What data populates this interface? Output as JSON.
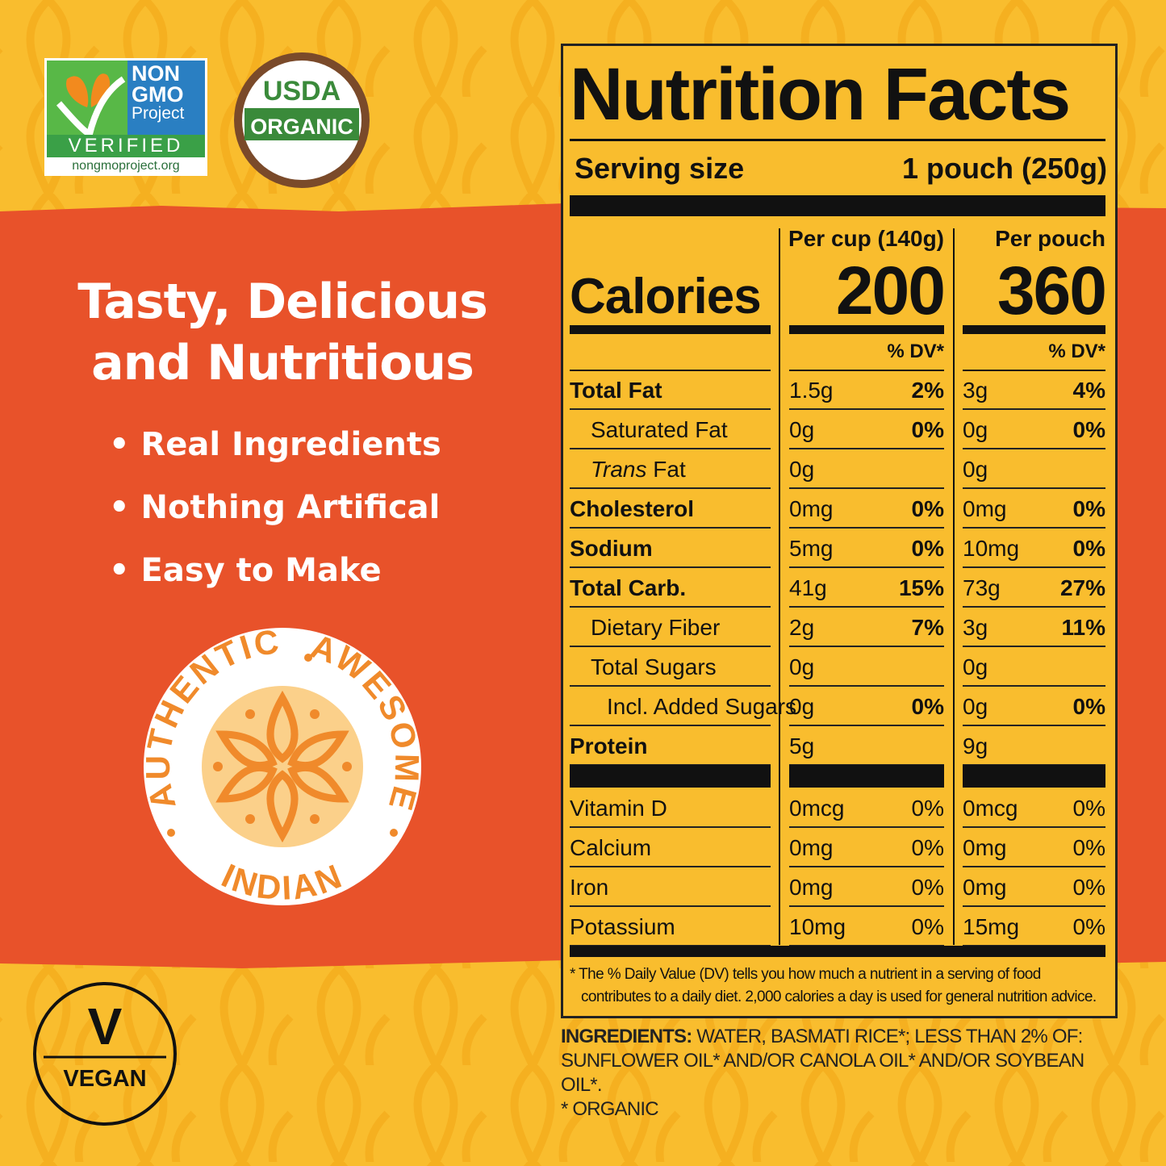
{
  "badges": {
    "non_gmo": {
      "line1": "NON",
      "line2": "GMO",
      "line3": "Project",
      "verified": "VERIFIED",
      "url": "nongmoproject.org"
    },
    "usda": {
      "top": "USDA",
      "bottom": "ORGANIC"
    }
  },
  "headline": {
    "line1": "Tasty, Delicious",
    "line2": "and Nutritious"
  },
  "bullets": [
    "Real Ingredients",
    "Nothing Artifical",
    "Easy to Make"
  ],
  "seal": {
    "words": [
      "AUTHENTIC",
      "AWESOME",
      "INDIAN"
    ]
  },
  "vegan": {
    "letter": "V",
    "label": "VEGAN"
  },
  "nutrition": {
    "title": "Nutrition Facts",
    "serving_label": "Serving size",
    "serving_value": "1 pouch (250g)",
    "per_cup_header": "Per cup (140g)",
    "per_pouch_header": "Per pouch",
    "calories_label": "Calories",
    "calories_per_cup": "200",
    "calories_per_pouch": "360",
    "dv_header": "% DV*",
    "rows": [
      {
        "name": "Total Fat",
        "per_cup": {
          "amount": "1.5g",
          "dv": "2%"
        },
        "per_pouch": {
          "amount": "3g",
          "dv": "4%"
        }
      },
      {
        "name": "Saturated Fat",
        "per_cup": {
          "amount": "0g",
          "dv": "0%"
        },
        "per_pouch": {
          "amount": "0g",
          "dv": "0%"
        }
      },
      {
        "name_italic": "Trans",
        "name": "Fat",
        "per_cup": {
          "amount": "0g"
        },
        "per_pouch": {
          "amount": "0g"
        }
      },
      {
        "name": "Cholesterol",
        "per_cup": {
          "amount": "0mg",
          "dv": "0%"
        },
        "per_pouch": {
          "amount": "0mg",
          "dv": "0%"
        }
      },
      {
        "name": "Sodium",
        "per_cup": {
          "amount": "5mg",
          "dv": "0%"
        },
        "per_pouch": {
          "amount": "10mg",
          "dv": "0%"
        }
      },
      {
        "name": "Total Carb.",
        "per_cup": {
          "amount": "41g",
          "dv": "15%"
        },
        "per_pouch": {
          "amount": "73g",
          "dv": "27%"
        }
      },
      {
        "name": "Dietary Fiber",
        "per_cup": {
          "amount": "2g",
          "dv": "7%"
        },
        "per_pouch": {
          "amount": "3g",
          "dv": "11%"
        }
      },
      {
        "name": "Total Sugars",
        "per_cup": {
          "amount": "0g"
        },
        "per_pouch": {
          "amount": "0g"
        }
      },
      {
        "name": "Incl. Added Sugars",
        "per_cup": {
          "amount": "0g",
          "dv": "0%"
        },
        "per_pouch": {
          "amount": "0g",
          "dv": "0%"
        }
      },
      {
        "name": "Protein",
        "per_cup": {
          "amount": "5g"
        },
        "per_pouch": {
          "amount": "9g"
        }
      }
    ],
    "vitamins": [
      {
        "name": "Vitamin D",
        "per_cup": {
          "amount": "0mcg",
          "dv": "0%"
        },
        "per_pouch": {
          "amount": "0mcg",
          "dv": "0%"
        }
      },
      {
        "name": "Calcium",
        "per_cup": {
          "amount": "0mg",
          "dv": "0%"
        },
        "per_pouch": {
          "amount": "0mg",
          "dv": "0%"
        }
      },
      {
        "name": "Iron",
        "per_cup": {
          "amount": "0mg",
          "dv": "0%"
        },
        "per_pouch": {
          "amount": "0mg",
          "dv": "0%"
        }
      },
      {
        "name": "Potassium",
        "per_cup": {
          "amount": "10mg",
          "dv": "0%"
        },
        "per_pouch": {
          "amount": "15mg",
          "dv": "0%"
        }
      }
    ],
    "footnote": "* The % Daily Value (DV) tells you how much a nutrient in a serving of food contributes to a daily diet. 2,000 calories a day is used for general nutrition advice."
  },
  "ingredients": {
    "label": "INGREDIENTS:",
    "text": "WATER, BASMATI RICE*; LESS THAN 2% OF: SUNFLOWER OIL* AND/OR CANOLA OIL* AND/OR SOYBEAN OIL*.",
    "note": "* ORGANIC"
  }
}
